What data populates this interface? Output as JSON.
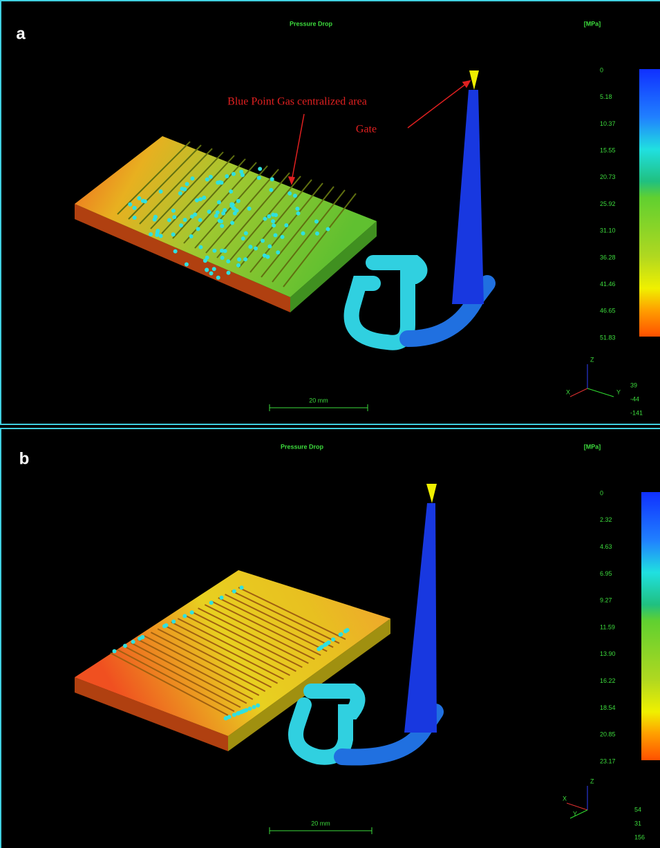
{
  "panels": [
    {
      "label": "a",
      "title": "Pressure Drop",
      "unit": "[MPa]",
      "scale_ticks": [
        "0",
        "5.18",
        "10.37",
        "15.55",
        "20.73",
        "25.92",
        "31.10",
        "36.28",
        "41.46",
        "46.65",
        "51.83"
      ],
      "annotations": [
        "Blue Point Gas centralized area",
        "Gate"
      ],
      "scale_bar": "20 mm",
      "axes": [
        "Z",
        "X",
        "Y"
      ],
      "coords": [
        "39",
        "-44",
        "-141"
      ]
    },
    {
      "label": "b",
      "title": "Pressure Drop",
      "unit": "[MPa]",
      "scale_ticks": [
        "0",
        "2.32",
        "4.63",
        "6.95",
        "9.27",
        "11.59",
        "13.90",
        "16.22",
        "18.54",
        "20.85",
        "23.17"
      ],
      "scale_bar": "20 mm",
      "axes": [
        "Z",
        "X",
        "Y"
      ],
      "coords": [
        "54",
        "31",
        "156"
      ]
    }
  ]
}
